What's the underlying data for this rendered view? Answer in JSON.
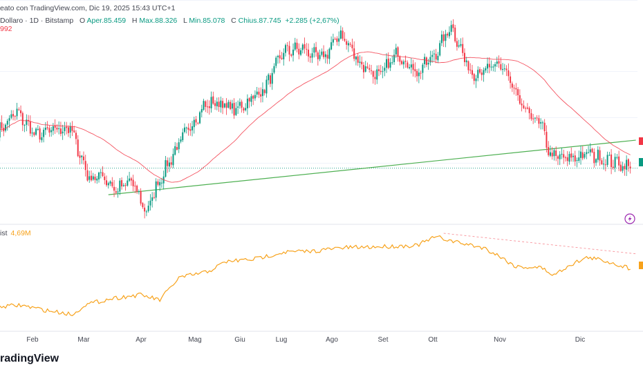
{
  "header": {
    "text": "eato con TradingView.com, Dic 19, 2025 15:43 UTC+1"
  },
  "legend": {
    "symbol": "Dollaro · 1D · Bitstamp",
    "o_label": "O",
    "o_value": "Aper.85.459",
    "h_label": "H",
    "h_value": "Max.88.326",
    "l_label": "L",
    "l_value": "Min.85.078",
    "c_label": "C",
    "c_value": "Chius.87.745",
    "change": "+2.285 (+2,67%)",
    "ma_value": "992"
  },
  "volume_legend": {
    "name": "ist",
    "value": "4,69M"
  },
  "brand": {
    "text": "radingView"
  },
  "colors": {
    "up": "#089981",
    "down": "#f23645",
    "ma": "#f23645",
    "trend": "#4caf50",
    "volume": "#f7a21b"
  },
  "icons": [
    "lightning-icon"
  ],
  "chart_data": [
    {
      "type": "candlestick",
      "x_axis_labels": [
        "Feb",
        "Mar",
        "Apr",
        "Mag",
        "Giu",
        "Lug",
        "Ago",
        "Set",
        "Ott",
        "Nov",
        "Dic"
      ],
      "ylim": [
        74000,
        127000
      ],
      "close_start": 97000,
      "close_anchors": [
        [
          0,
          97000
        ],
        [
          10,
          102000
        ],
        [
          20,
          96000
        ],
        [
          30,
          97500
        ],
        [
          38,
          98000
        ],
        [
          48,
          85000
        ],
        [
          55,
          86000
        ],
        [
          62,
          82000
        ],
        [
          70,
          84500
        ],
        [
          78,
          76500
        ],
        [
          84,
          84000
        ],
        [
          95,
          94000
        ],
        [
          108,
          103500
        ],
        [
          115,
          104500
        ],
        [
          125,
          102500
        ],
        [
          140,
          108000
        ],
        [
          150,
          117500
        ],
        [
          160,
          118000
        ],
        [
          170,
          115500
        ],
        [
          180,
          122000
        ],
        [
          190,
          114500
        ],
        [
          200,
          111000
        ],
        [
          210,
          117000
        ],
        [
          220,
          112000
        ],
        [
          230,
          117000
        ],
        [
          238,
          124000
        ],
        [
          248,
          112000
        ],
        [
          255,
          112500
        ],
        [
          265,
          114000
        ],
        [
          275,
          103000
        ],
        [
          285,
          99000
        ],
        [
          290,
          91000
        ],
        [
          300,
          90000
        ],
        [
          310,
          91500
        ],
        [
          318,
          90000
        ],
        [
          326,
          89000
        ],
        [
          332,
          87745
        ]
      ],
      "ma_period": 50,
      "trend_line": [
        [
          58,
          81000
        ],
        [
          332,
          94700
        ]
      ],
      "last_price": 87745
    },
    {
      "type": "line",
      "name": "ist",
      "last_value": "4,69M",
      "anchors": [
        [
          0,
          0.86
        ],
        [
          12,
          0.84
        ],
        [
          25,
          0.9
        ],
        [
          40,
          0.95
        ],
        [
          45,
          0.84
        ],
        [
          60,
          0.76
        ],
        [
          75,
          0.72
        ],
        [
          85,
          0.78
        ],
        [
          95,
          0.52
        ],
        [
          110,
          0.45
        ],
        [
          120,
          0.33
        ],
        [
          135,
          0.3
        ],
        [
          150,
          0.22
        ],
        [
          165,
          0.21
        ],
        [
          180,
          0.17
        ],
        [
          195,
          0.16
        ],
        [
          210,
          0.15
        ],
        [
          220,
          0.14
        ],
        [
          230,
          0.04
        ],
        [
          240,
          0.1
        ],
        [
          255,
          0.17
        ],
        [
          262,
          0.25
        ],
        [
          272,
          0.39
        ],
        [
          285,
          0.4
        ],
        [
          292,
          0.49
        ],
        [
          300,
          0.37
        ],
        [
          310,
          0.28
        ],
        [
          320,
          0.33
        ],
        [
          332,
          0.41
        ]
      ],
      "dashed_trend": [
        [
          234,
          0.0
        ],
        [
          332,
          0.24
        ]
      ]
    }
  ]
}
